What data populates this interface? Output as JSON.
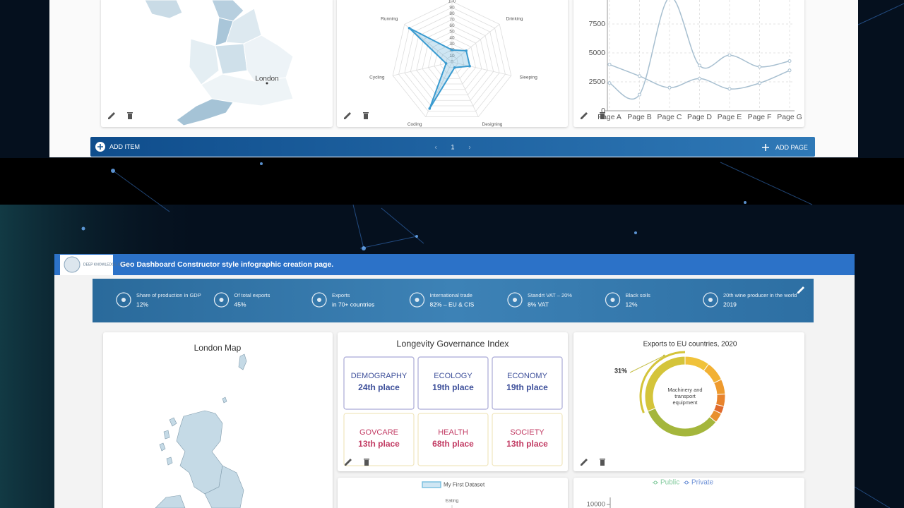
{
  "top_dashboard": {
    "map": {
      "label": "London"
    },
    "radar": {
      "type": "radar",
      "axes": [
        null,
        "Drinking",
        "Sleeping",
        "Designing",
        "Coding",
        "Cycling",
        "Running"
      ],
      "values": [
        20,
        30,
        30,
        10,
        85,
        10,
        90
      ],
      "rlim": [
        0,
        100
      ],
      "rticks": [
        0,
        10,
        20,
        30,
        40,
        50,
        60,
        70,
        80,
        90,
        100
      ],
      "color": "#3a9bd0"
    },
    "line": {
      "type": "line",
      "categories": [
        "Page A",
        "Page B",
        "Page C",
        "Page D",
        "Page E",
        "Page F",
        "Page G"
      ],
      "ylim": [
        0,
        10000
      ],
      "yticks": [
        0,
        2500,
        5000,
        7500
      ],
      "grid": true,
      "series": [
        {
          "color": "#a7bfd0",
          "values": [
            4000,
            3000,
            2000,
            2780,
            1890,
            2390,
            3490
          ]
        },
        {
          "color": "#a7bfd0",
          "values": [
            2400,
            1398,
            9800,
            3908,
            4800,
            3800,
            4300
          ]
        }
      ]
    },
    "toolbar": {
      "add_item": "ADD ITEM",
      "current_page": 1,
      "add_page": "ADD PAGE"
    }
  },
  "geo_dashboard": {
    "header": {
      "logo": "DEEP KNOWLEDGE GROUP",
      "title": "Geo Dashboard Constructor style infographic creation page."
    },
    "stats": [
      {
        "label": "Share of production in GDP",
        "value": "12%"
      },
      {
        "label": "Of total exports",
        "value": "45%"
      },
      {
        "label": "Exports",
        "value": "in 70+ countries"
      },
      {
        "label": "International trade",
        "value": "82% – EU & CIS"
      },
      {
        "label": "Standrt VAT – 20%",
        "value": "8% VAT"
      },
      {
        "label": "Black soils",
        "value": "12%"
      },
      {
        "label": "20th wine producer in the world",
        "value": "2019"
      }
    ],
    "map_card": {
      "title": "London Map"
    },
    "governance": {
      "title": "Longevity Governance Index",
      "tiles": [
        {
          "name": "DEMOGRAPHY",
          "rank": "24th place"
        },
        {
          "name": "ECOLOGY",
          "rank": "19th place"
        },
        {
          "name": "ECONOMY",
          "rank": "19th place"
        },
        {
          "name": "GOVCARE",
          "rank": "13th place"
        },
        {
          "name": "HEALTH",
          "rank": "68th place"
        },
        {
          "name": "SOCIETY",
          "rank": "13th place"
        }
      ]
    },
    "donut": {
      "type": "pie",
      "title": "Exports to EU countries, 2020",
      "center_label": "Machinery and transport equipment",
      "values": [
        10,
        8,
        6,
        5,
        3,
        4,
        33,
        31
      ],
      "value_labels": [
        null,
        null,
        null,
        null,
        null,
        null,
        null,
        "31%"
      ],
      "colors": [
        "#f0c23a",
        "#f2b134",
        "#ee9a2e",
        "#e8832c",
        "#e06a2c",
        "#e8902e",
        "#a4b63c",
        "#d4c43a"
      ]
    },
    "radar_preview": {
      "legend": "My First Dataset",
      "axes": [
        "Eating"
      ],
      "color": "#7cc0e0"
    },
    "line_preview": {
      "series": [
        {
          "name": "Public",
          "color": "#82ca9d"
        },
        {
          "name": "Private",
          "color": "#6b8fd6"
        }
      ],
      "yticks": [
        10000
      ]
    }
  }
}
